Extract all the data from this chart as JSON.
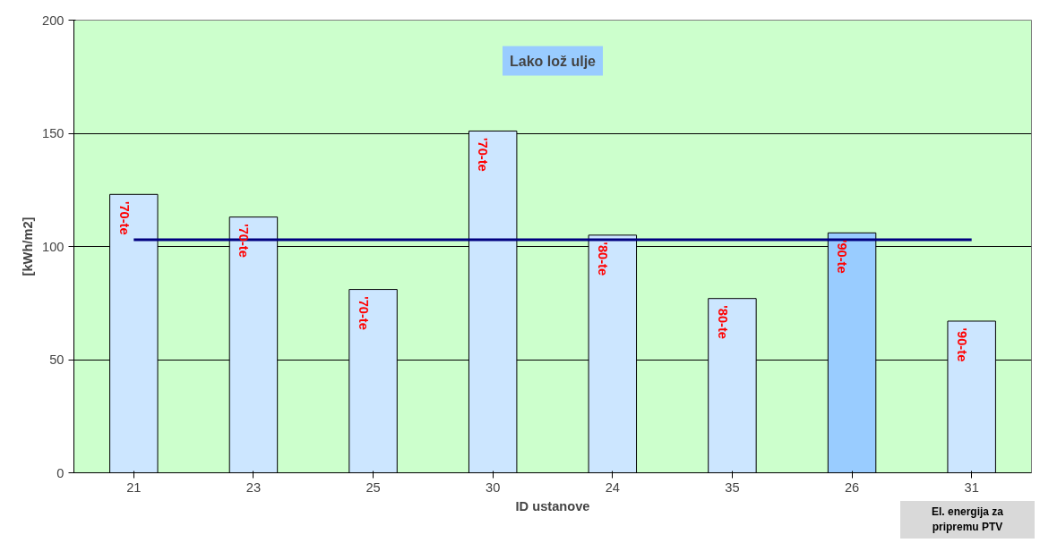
{
  "chart_data": {
    "type": "bar",
    "title": "Lako lož ulje",
    "xlabel": "ID ustanove",
    "ylabel": "[kWh/m2]",
    "categories": [
      "21",
      "23",
      "25",
      "30",
      "24",
      "35",
      "26",
      "31"
    ],
    "values": [
      123,
      113,
      81,
      151,
      105,
      77,
      106,
      67
    ],
    "colors": [
      "#cce6ff",
      "#cce6ff",
      "#cce6ff",
      "#cce6ff",
      "#cce6ff",
      "#cce6ff",
      "#99ccff",
      "#cce6ff"
    ],
    "ylim": [
      0,
      200
    ],
    "yticks": [
      0,
      50,
      100,
      150,
      200
    ],
    "grid": "y",
    "ref_lines": [
      {
        "axis": "y",
        "value": 103,
        "color": "#000080"
      }
    ],
    "annotations": [
      {
        "text": "'70-te",
        "x": "21",
        "y": 123
      },
      {
        "text": "'70-te",
        "x": "23",
        "y": 113
      },
      {
        "text": "'70-te",
        "x": "25",
        "y": 81
      },
      {
        "text": "'70-te",
        "x": "30",
        "y": 151
      },
      {
        "text": "'80-te",
        "x": "24",
        "y": 105
      },
      {
        "text": "'80-te",
        "x": "35",
        "y": 77
      },
      {
        "text": "'90-te",
        "x": "26",
        "y": 106
      },
      {
        "text": "'90-te",
        "x": "31",
        "y": 67
      },
      "El. energija za pripremu PTV"
    ]
  }
}
